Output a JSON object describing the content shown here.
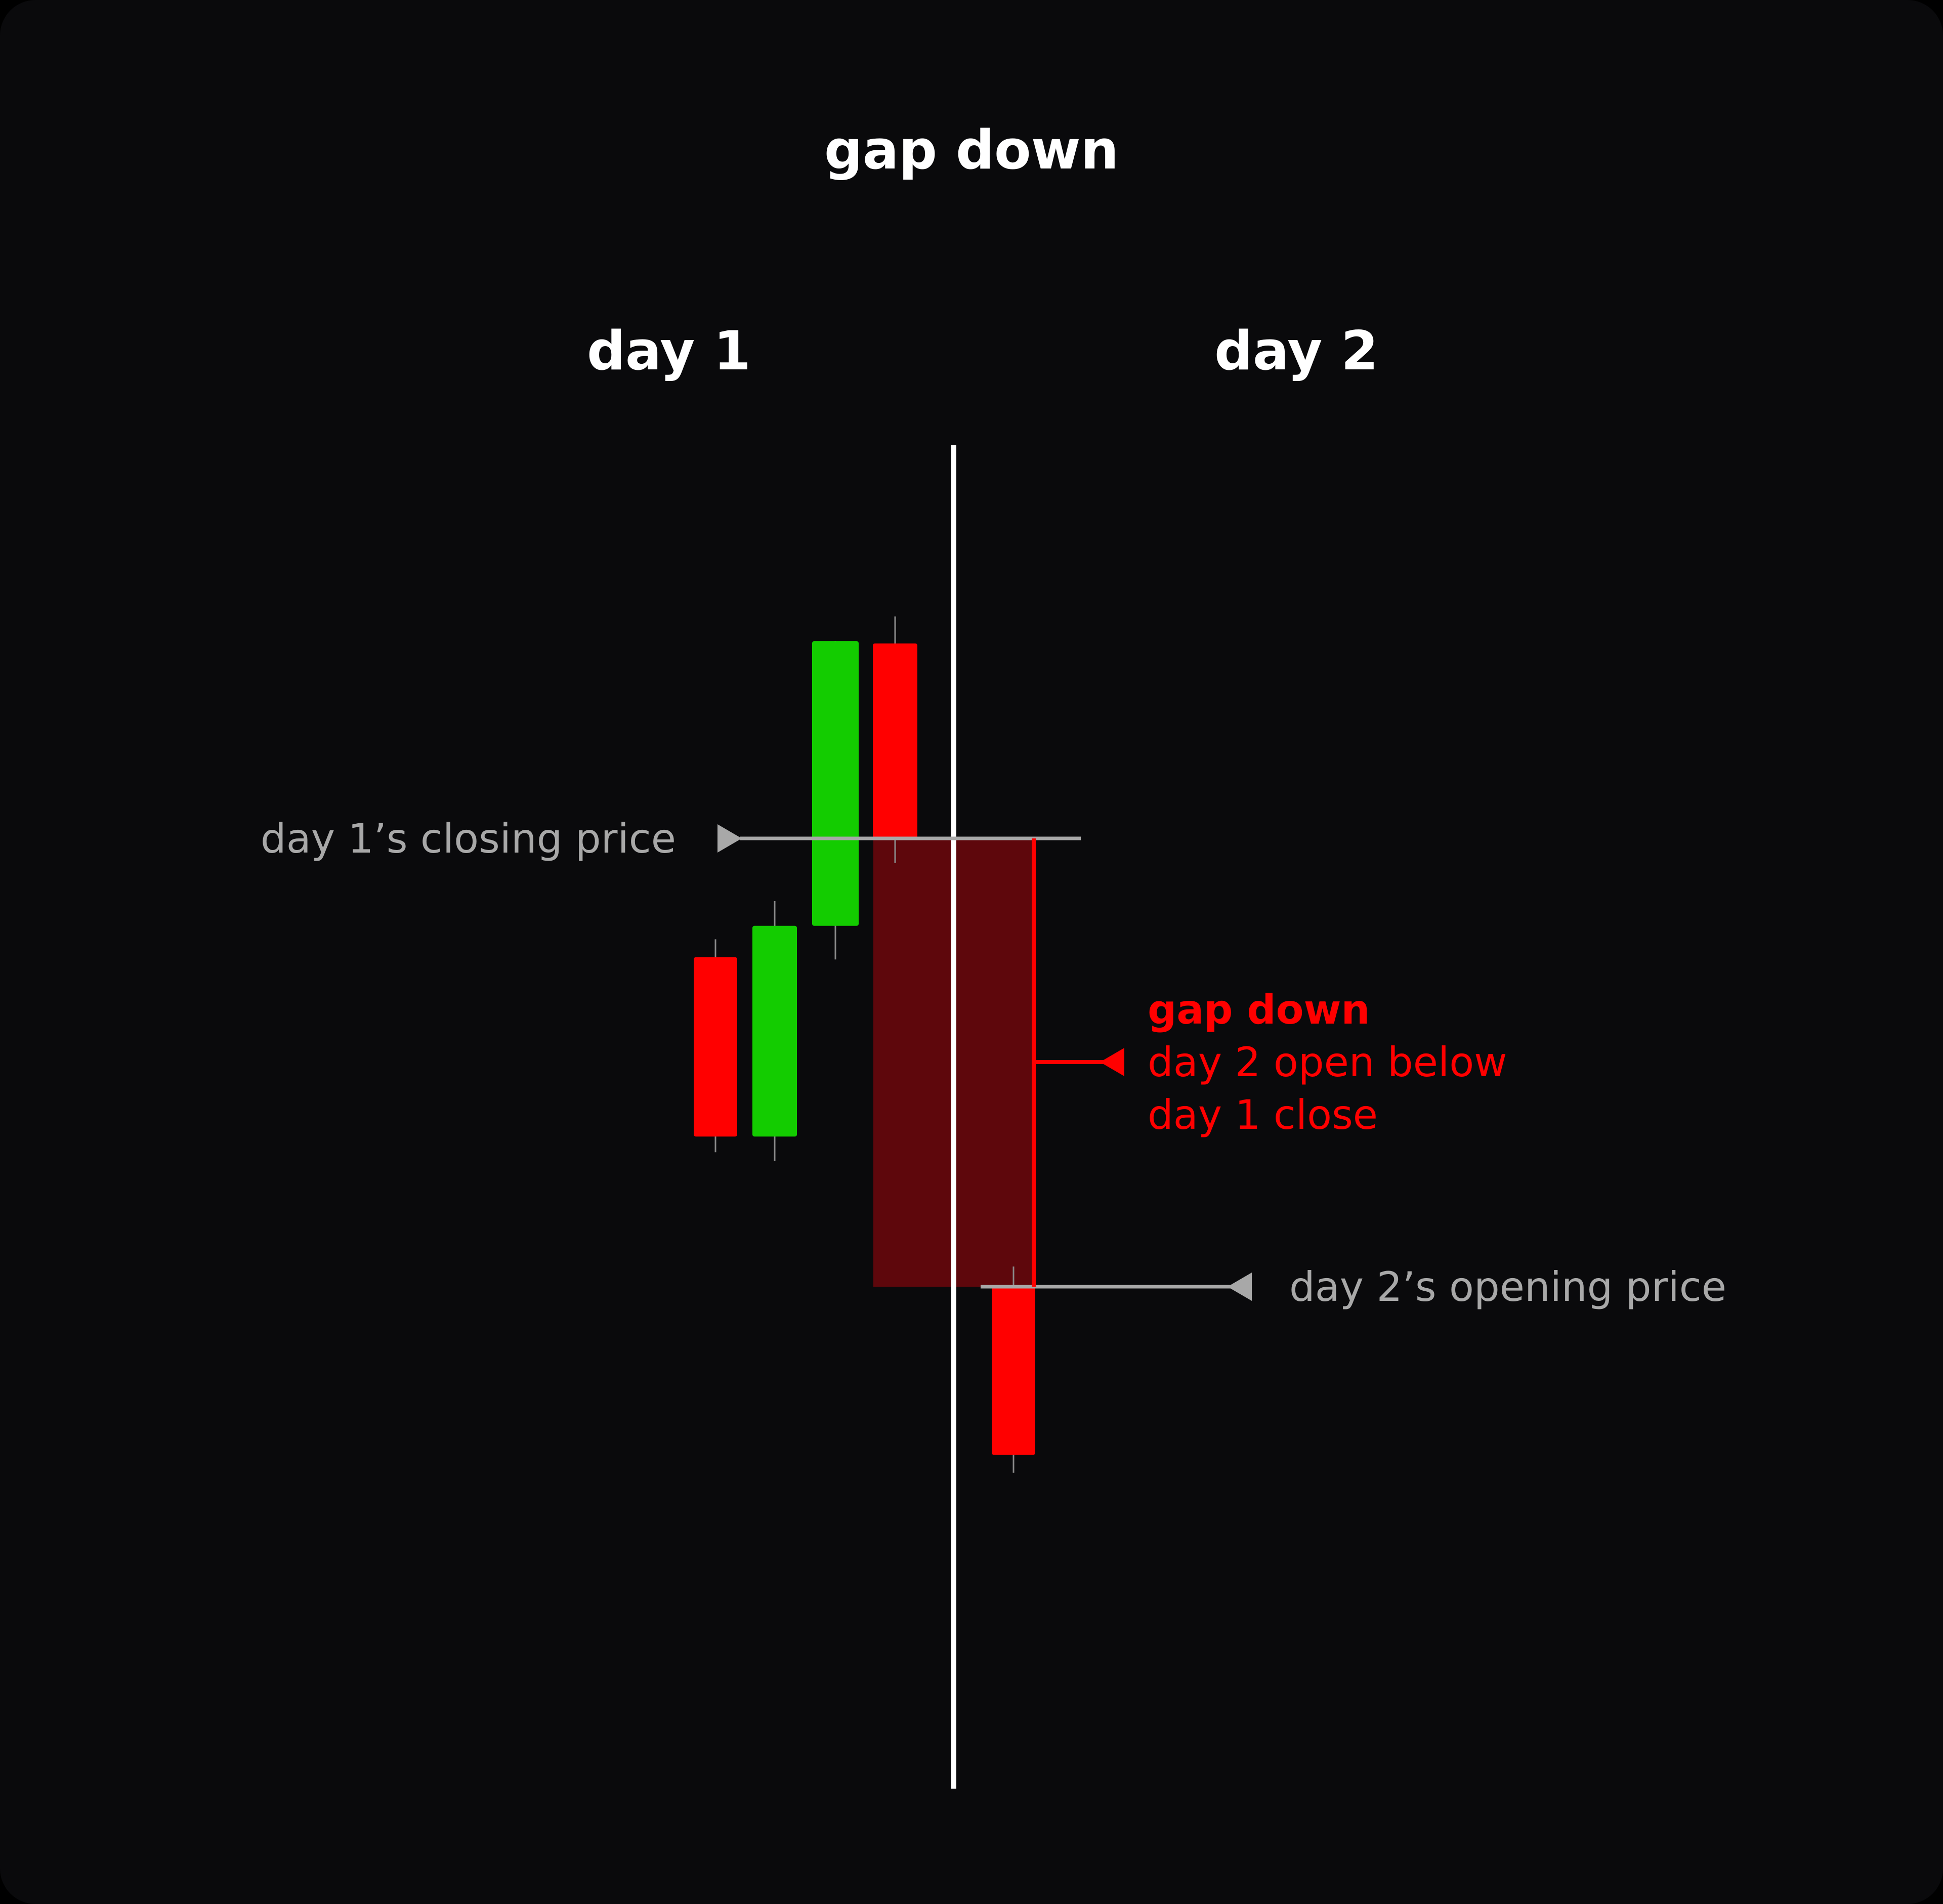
{
  "title": "gap down",
  "day_labels": {
    "day1": "day 1",
    "day2": "day 2"
  },
  "annotations": {
    "day1_close": "day 1’s closing price",
    "day2_open": "day 2’s opening price",
    "gap_heading": "gap down",
    "gap_line1": "day 2 open below",
    "gap_line2": "day 1 close"
  },
  "colors": {
    "background": "#0a0a0c",
    "bull": "#13cc00",
    "bear": "#ff0000",
    "gap_fill": "#5e070c",
    "divider": "#ffffff",
    "guide": "#a8a8a8",
    "text": "#ffffff",
    "muted_text": "#a8a8a8",
    "accent_text": "#ff0000"
  },
  "candles": [
    {
      "day": 1,
      "direction": "bear",
      "open": 36.0,
      "close": 28.0,
      "high": 36.8,
      "low": 27.3
    },
    {
      "day": 1,
      "direction": "bull",
      "open": 28.0,
      "close": 37.4,
      "high": 38.5,
      "low": 26.9
    },
    {
      "day": 1,
      "direction": "bull",
      "open": 37.4,
      "close": 50.1,
      "high": 50.1,
      "low": 35.9
    },
    {
      "day": 1,
      "direction": "bear",
      "open": 50.0,
      "close": 41.3,
      "high": 51.2,
      "low": 40.2
    },
    {
      "day": 2,
      "direction": "bear",
      "open": 21.3,
      "close": 13.8,
      "high": 22.2,
      "low": 13.0
    }
  ],
  "gap": {
    "day1_close": 41.3,
    "day2_open": 21.3
  }
}
